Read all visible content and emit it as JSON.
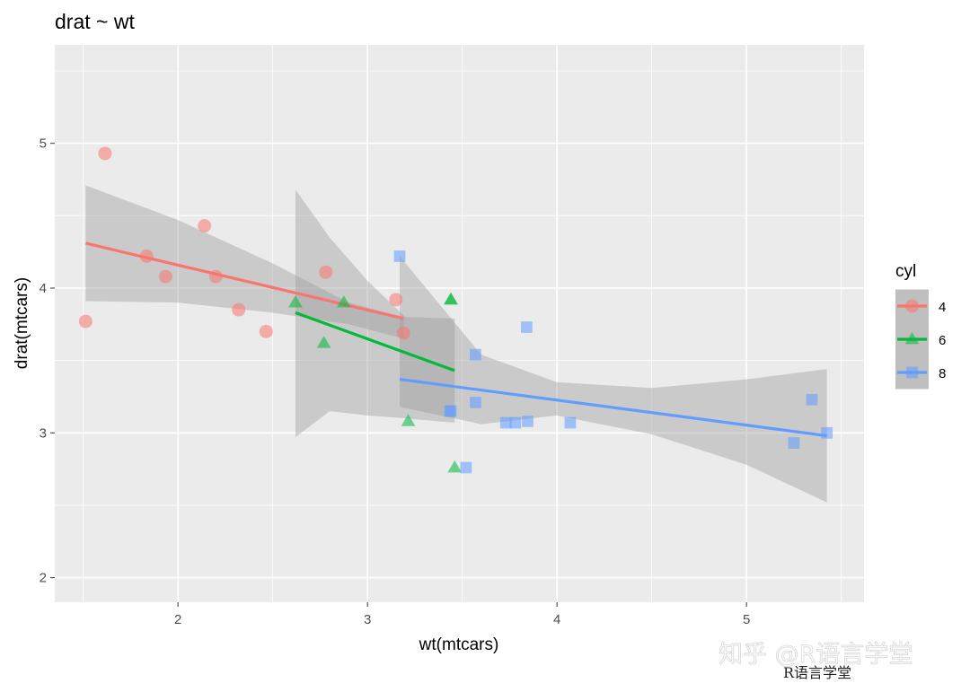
{
  "chart_data": {
    "type": "scatter",
    "title": "drat ~ wt",
    "xlabel": "wt(mtcars)",
    "ylabel": "drat(mtcars)",
    "xlim": [
      1.35,
      5.62
    ],
    "ylim": [
      1.83,
      5.68
    ],
    "x_ticks": [
      2,
      3,
      4,
      5
    ],
    "y_ticks": [
      2,
      3,
      4,
      5
    ],
    "grid": true,
    "legend": {
      "title": "cyl",
      "position": "right"
    },
    "series": [
      {
        "name": "4",
        "color": "#F8766D",
        "shape": "circle",
        "points": [
          [
            2.32,
            3.85
          ],
          [
            3.19,
            3.69
          ],
          [
            3.15,
            3.92
          ],
          [
            2.2,
            4.08
          ],
          [
            1.615,
            4.93
          ],
          [
            1.835,
            4.22
          ],
          [
            2.465,
            3.7
          ],
          [
            1.935,
            4.08
          ],
          [
            2.14,
            4.43
          ],
          [
            1.513,
            3.77
          ],
          [
            2.78,
            4.11
          ]
        ],
        "fit": {
          "x0": 1.513,
          "y0": 4.31,
          "x1": 3.19,
          "y1": 3.79
        },
        "band": {
          "upper": [
            [
              1.513,
              4.71
            ],
            [
              2.0,
              4.47
            ],
            [
              2.5,
              4.17
            ],
            [
              2.9,
              3.9
            ],
            [
              3.19,
              3.8
            ]
          ],
          "lower": [
            [
              1.513,
              3.91
            ],
            [
              2.0,
              3.9
            ],
            [
              2.5,
              3.83
            ],
            [
              2.9,
              3.75
            ],
            [
              3.19,
              3.65
            ]
          ]
        }
      },
      {
        "name": "6",
        "color": "#00BA38",
        "shape": "triangle",
        "points": [
          [
            2.62,
            3.9
          ],
          [
            2.875,
            3.9
          ],
          [
            3.215,
            3.08
          ],
          [
            3.46,
            2.76
          ],
          [
            3.44,
            3.92
          ],
          [
            3.44,
            3.92
          ],
          [
            2.77,
            3.62
          ]
        ],
        "fit": {
          "x0": 2.62,
          "y0": 3.83,
          "x1": 3.46,
          "y1": 3.43
        },
        "band": {
          "upper": [
            [
              2.62,
              4.68
            ],
            [
              2.8,
              4.35
            ],
            [
              3.0,
              4.05
            ],
            [
              3.2,
              3.8
            ],
            [
              3.46,
              3.79
            ]
          ],
          "lower": [
            [
              2.62,
              2.97
            ],
            [
              2.8,
              3.15
            ],
            [
              3.0,
              3.12
            ],
            [
              3.2,
              3.1
            ],
            [
              3.46,
              3.07
            ]
          ]
        }
      },
      {
        "name": "8",
        "color": "#619CFF",
        "shape": "square",
        "points": [
          [
            3.44,
            3.15
          ],
          [
            3.57,
            3.21
          ],
          [
            4.07,
            3.07
          ],
          [
            3.73,
            3.07
          ],
          [
            3.78,
            3.07
          ],
          [
            5.25,
            2.93
          ],
          [
            5.424,
            3.0
          ],
          [
            5.345,
            3.23
          ],
          [
            3.52,
            2.76
          ],
          [
            3.435,
            3.15
          ],
          [
            3.84,
            3.73
          ],
          [
            3.845,
            3.08
          ],
          [
            3.17,
            4.22
          ],
          [
            3.57,
            3.54
          ]
        ],
        "fit": {
          "x0": 3.17,
          "y0": 3.37,
          "x1": 5.424,
          "y1": 2.98
        },
        "band": {
          "upper": [
            [
              3.17,
              4.22
            ],
            [
              3.6,
              3.54
            ],
            [
              4.0,
              3.35
            ],
            [
              4.5,
              3.31
            ],
            [
              5.0,
              3.37
            ],
            [
              5.424,
              3.44
            ]
          ],
          "lower": [
            [
              3.17,
              3.18
            ],
            [
              3.6,
              3.06
            ],
            [
              4.0,
              3.12
            ],
            [
              4.5,
              2.99
            ],
            [
              5.0,
              2.78
            ],
            [
              5.424,
              2.52
            ]
          ]
        }
      }
    ]
  },
  "watermark": {
    "main": "知乎 @R语言学堂",
    "sub": "R语言学堂"
  }
}
